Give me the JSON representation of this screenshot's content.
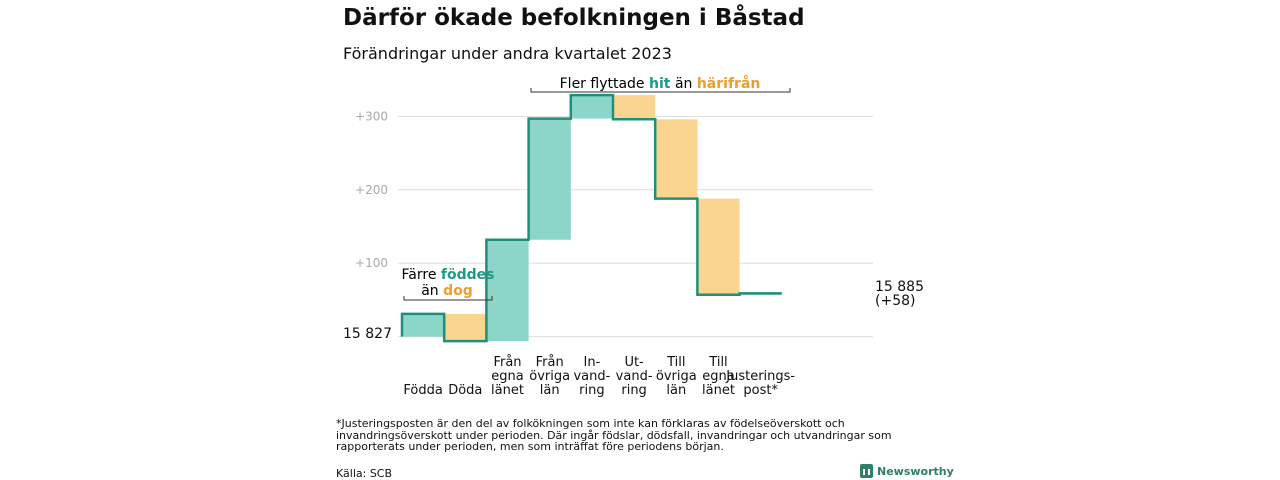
{
  "title": "Därför ökade befolkningen i Båstad",
  "subtitle": "Förändringar under andra kvartalet 2023",
  "colors": {
    "increase": "#8cd6c9",
    "decrease": "#fad58f",
    "line": "#1f8f7a",
    "hit": "#1f9a85",
    "harifran": "#e8a02b",
    "grid": "#dddddd",
    "tick": "#aaaaaa"
  },
  "chart_data": {
    "type": "waterfall",
    "title": "Därför ökade befolkningen i Båstad",
    "subtitle": "Förändringar under andra kvartalet 2023",
    "baseline": 15827,
    "start_label": "15  827",
    "end_label_line1": "15 885",
    "end_label_line2": "(+58)",
    "yticks": [
      "+100",
      "+200",
      "+300"
    ],
    "ylim": [
      -10,
      340
    ],
    "steps": [
      {
        "label_lines": [
          "Födda"
        ],
        "value": 31
      },
      {
        "label_lines": [
          "Döda"
        ],
        "value": -37
      },
      {
        "label_lines": [
          "Från",
          "egna",
          "länet"
        ],
        "value": 138
      },
      {
        "label_lines": [
          "Från",
          "övriga",
          "län"
        ],
        "value": 165
      },
      {
        "label_lines": [
          "In-",
          "vand-",
          "ring"
        ],
        "value": 32
      },
      {
        "label_lines": [
          "Ut-",
          "vand-",
          "ring"
        ],
        "value": -33
      },
      {
        "label_lines": [
          "Till",
          "övriga",
          "län"
        ],
        "value": -108
      },
      {
        "label_lines": [
          "Till",
          "egna",
          "länet"
        ],
        "value": -131
      },
      {
        "label_lines": [
          "Justerings-",
          "post*"
        ],
        "value": 2
      }
    ],
    "annotations": {
      "born": {
        "line1": "Färre",
        "word1": "föddes",
        "line2a": "än",
        "word2": "dog"
      },
      "moved": {
        "pre": "Fler flyttade",
        "word1": "hit",
        "mid": "än",
        "word2": "härifrån"
      }
    }
  },
  "footnote": "*Justeringsposten är den del av folkökningen som inte kan förklaras av födelseöverskott och invandringsöverskott under perioden. Där ingår födslar, dödsfall, invandringar och utvandringar som rapporterats under perioden, men som inträffat före periodens början.",
  "source": "Källa: SCB",
  "brand": "Newsworthy"
}
